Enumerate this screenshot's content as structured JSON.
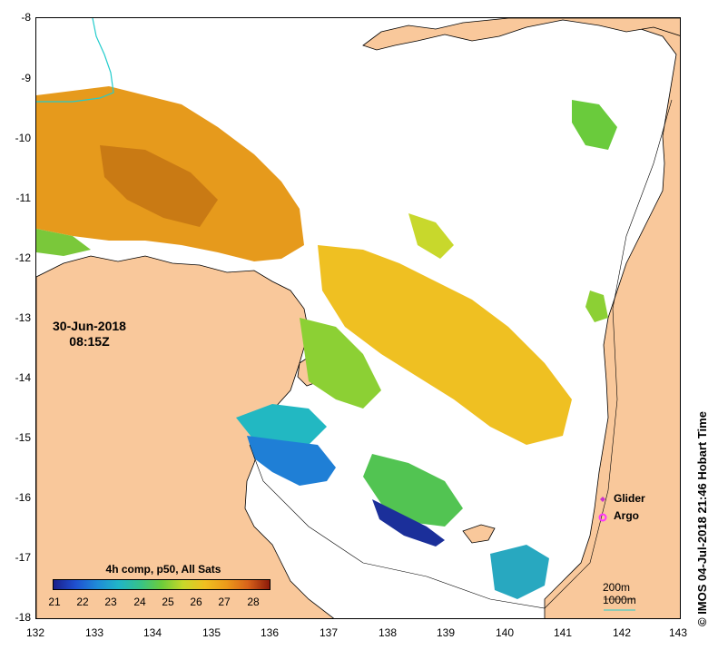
{
  "map": {
    "y_ticks": [
      "-8",
      "-9",
      "-10",
      "-11",
      "-12",
      "-13",
      "-14",
      "-15",
      "-16",
      "-17",
      "-18"
    ],
    "x_ticks": [
      "132",
      "133",
      "134",
      "135",
      "136",
      "137",
      "138",
      "139",
      "140",
      "141",
      "142",
      "143"
    ],
    "date": "30-Jun-2018",
    "time": "08:15Z",
    "legend_title": "4h comp, p50, All Sats",
    "colorbar_ticks": [
      "21",
      "22",
      "23",
      "24",
      "25",
      "26",
      "27",
      "28"
    ],
    "glider_label": "Glider",
    "argo_label": "Argo",
    "depth_200": "200m",
    "depth_1000": "1000m",
    "credit": "© IMOS 04-Jul-2018 21:46 Hobart Time",
    "colors": {
      "land": "#f9c89b",
      "cloud": "#ffffff",
      "glider": "#cc33cc",
      "argo": "#ff33ff"
    }
  }
}
